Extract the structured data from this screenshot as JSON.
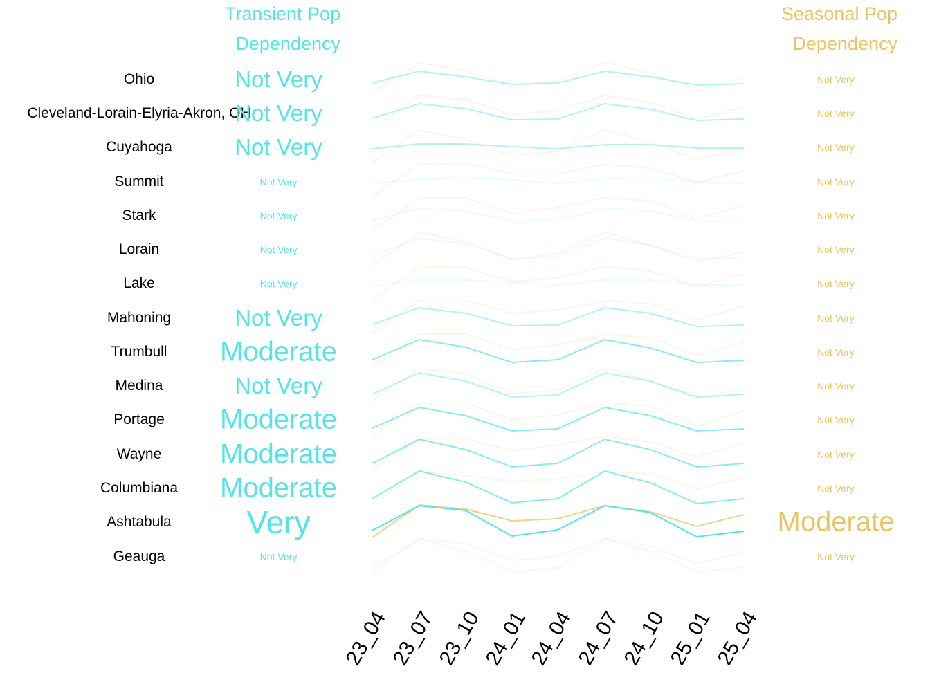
{
  "headers": {
    "transient": "Transient Pop\nDependency",
    "transient_line1": "Transient Pop",
    "transient_line2": "Dependency",
    "seasonal_line1": "Seasonal Pop",
    "seasonal_line2": "Dependency"
  },
  "colors": {
    "transient": "#54E4E8",
    "seasonal": "#E8C462",
    "text": "#000000"
  },
  "rows": [
    {
      "name": "Ohio",
      "transient": "Not Very",
      "seasonal": "Not Very",
      "t_size": "mid",
      "s_size": "small"
    },
    {
      "name": "Cleveland-Lorain-Elyria-Akron, OH",
      "transient": "Not Very",
      "seasonal": "Not Very",
      "t_size": "mid",
      "s_size": "small"
    },
    {
      "name": "Cuyahoga",
      "transient": "Not Very",
      "seasonal": "Not Very",
      "t_size": "mid",
      "s_size": "small"
    },
    {
      "name": "Summit",
      "transient": "Not Very",
      "seasonal": "Not Very",
      "t_size": "small",
      "s_size": "small"
    },
    {
      "name": "Stark",
      "transient": "Not Very",
      "seasonal": "Not Very",
      "t_size": "small",
      "s_size": "small"
    },
    {
      "name": "Lorain",
      "transient": "Not Very",
      "seasonal": "Not Very",
      "t_size": "small",
      "s_size": "small"
    },
    {
      "name": "Lake",
      "transient": "Not Very",
      "seasonal": "Not Very",
      "t_size": "small",
      "s_size": "small"
    },
    {
      "name": "Mahoning",
      "transient": "Not Very",
      "seasonal": "Not Very",
      "t_size": "mid",
      "s_size": "small"
    },
    {
      "name": "Trumbull",
      "transient": "Moderate",
      "seasonal": "Not Very",
      "t_size": "big",
      "s_size": "small"
    },
    {
      "name": "Medina",
      "transient": "Not Very",
      "seasonal": "Not Very",
      "t_size": "mid",
      "s_size": "small"
    },
    {
      "name": "Portage",
      "transient": "Moderate",
      "seasonal": "Not Very",
      "t_size": "big",
      "s_size": "small"
    },
    {
      "name": "Wayne",
      "transient": "Moderate",
      "seasonal": "Not Very",
      "t_size": "big",
      "s_size": "small"
    },
    {
      "name": "Columbiana",
      "transient": "Moderate",
      "seasonal": "Not Very",
      "t_size": "big",
      "s_size": "small"
    },
    {
      "name": "Ashtabula",
      "transient": "Very",
      "seasonal": "Moderate",
      "t_size": "huge",
      "s_size": "big"
    },
    {
      "name": "Geauga",
      "transient": "Not Very",
      "seasonal": "Not Very",
      "t_size": "small",
      "s_size": "small"
    }
  ],
  "chart_data": {
    "type": "line",
    "title": "",
    "xlabel": "",
    "ylabel": "",
    "x": [
      "23_04",
      "23_07",
      "23_10",
      "24_01",
      "24_04",
      "24_07",
      "24_10",
      "25_01",
      "25_04"
    ],
    "legend": [
      "Transient Pop Dependency",
      "Seasonal Pop Dependency"
    ],
    "note": "Small-multiple sparklines per region; values are relative (inverted pixel offsets within each row, higher = larger), no y axis shown.",
    "series": [
      {
        "region": "Ohio",
        "transient": [
          120,
          103,
          111,
          122,
          120,
          103,
          111,
          123,
          121
        ],
        "seasonal": [
          135,
          91,
          102,
          125,
          117,
          90,
          106,
          131,
          112
        ],
        "transient_opacity": 0.45,
        "seasonal_opacity": 0.15
      },
      {
        "region": "Cleveland-Lorain-Elyria-Akron, OH",
        "transient": [
          171,
          150,
          157,
          173,
          172,
          150,
          158,
          174,
          172
        ],
        "seasonal": [
          186,
          138,
          144,
          166,
          160,
          138,
          148,
          172,
          155
        ],
        "transient_opacity": 0.45,
        "seasonal_opacity": 0.15
      },
      {
        "region": "Cuyahoga",
        "transient": [
          215,
          208,
          208,
          212,
          215,
          209,
          209,
          214,
          214
        ],
        "seasonal": [
          235,
          188,
          202,
          226,
          219,
          187,
          206,
          230,
          216
        ],
        "transient_opacity": 0.45,
        "seasonal_opacity": 0.15
      },
      {
        "region": "Summit",
        "transient": [
          265,
          259,
          258,
          260,
          265,
          258,
          257,
          263,
          265
        ],
        "seasonal": [
          284,
          237,
          236,
          251,
          251,
          238,
          243,
          264,
          247
        ],
        "transient_opacity": 0.12,
        "seasonal_opacity": 0.15
      },
      {
        "region": "Stark",
        "transient": [
          319,
          301,
          306,
          319,
          319,
          301,
          305,
          320,
          320
        ],
        "seasonal": [
          334,
          286,
          286,
          309,
          300,
          286,
          290,
          317,
          296
        ],
        "transient_opacity": 0.12,
        "seasonal_opacity": 0.15
      },
      {
        "region": "Lorain",
        "transient": [
          371,
          344,
          352,
          375,
          371,
          344,
          354,
          375,
          372
        ],
        "seasonal": [
          383,
          336,
          349,
          375,
          367,
          336,
          355,
          379,
          364
        ],
        "transient_opacity": 0.12,
        "seasonal_opacity": 0.15
      },
      {
        "region": "Lake",
        "transient": [
          413,
          405,
          405,
          409,
          412,
          405,
          405,
          412,
          412
        ],
        "seasonal": [
          433,
          385,
          387,
          407,
          402,
          385,
          392,
          415,
          396
        ],
        "transient_opacity": 0.12,
        "seasonal_opacity": 0.15
      },
      {
        "region": "Mahoning",
        "transient": [
          469,
          445,
          453,
          471,
          470,
          445,
          453,
          472,
          470
        ],
        "seasonal": [
          482,
          434,
          434,
          453,
          448,
          435,
          439,
          462,
          443
        ],
        "transient_opacity": 0.45,
        "seasonal_opacity": 0.15
      },
      {
        "region": "Trumbull",
        "transient": [
          520,
          491,
          502,
          524,
          520,
          491,
          503,
          524,
          521
        ],
        "seasonal": [
          532,
          483,
          483,
          506,
          499,
          484,
          488,
          514,
          496
        ],
        "transient_opacity": 0.7,
        "seasonal_opacity": 0.15
      },
      {
        "region": "Medina",
        "transient": [
          570,
          539,
          551,
          574,
          571,
          539,
          551,
          574,
          570
        ],
        "seasonal": [
          580,
          533,
          540,
          569,
          564,
          533,
          551,
          577,
          561
        ],
        "transient_opacity": 0.45,
        "seasonal_opacity": 0.15
      },
      {
        "region": "Portage",
        "transient": [
          619,
          589,
          601,
          623,
          620,
          589,
          601,
          623,
          620
        ],
        "seasonal": [
          630,
          583,
          583,
          607,
          600,
          582,
          587,
          616,
          594
        ],
        "transient_opacity": 0.7,
        "seasonal_opacity": 0.15
      },
      {
        "region": "Wayne",
        "transient": [
          670,
          635,
          650,
          675,
          670,
          635,
          650,
          675,
          670
        ],
        "seasonal": [
          679,
          634,
          634,
          652,
          643,
          631,
          639,
          661,
          640
        ],
        "transient_opacity": 0.7,
        "seasonal_opacity": 0.15
      },
      {
        "region": "Columbiana",
        "transient": [
          721,
          681,
          697,
          727,
          721,
          681,
          698,
          728,
          721
        ],
        "seasonal": [
          729,
          682,
          688,
          696,
          693,
          682,
          685,
          707,
          690
        ],
        "transient_opacity": 0.7,
        "seasonal_opacity": 0.15
      },
      {
        "region": "Ashtabula",
        "transient": [
          767,
          731,
          738,
          775,
          766,
          731,
          741,
          776,
          768
        ],
        "seasonal": [
          777,
          730,
          736,
          753,
          750,
          731,
          740,
          761,
          744
        ],
        "transient_opacity": 1.0,
        "seasonal_opacity": 0.75
      },
      {
        "region": "Geauga",
        "transient": [
          820,
          779,
          797,
          827,
          821,
          779,
          797,
          827,
          820
        ],
        "seasonal": [
          827,
          779,
          786,
          810,
          804,
          779,
          790,
          815,
          798
        ],
        "transient_opacity": 0.12,
        "seasonal_opacity": 0.15
      }
    ]
  }
}
